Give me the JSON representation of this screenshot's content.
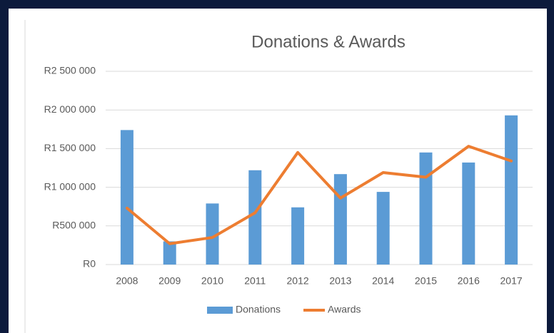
{
  "chart_data": {
    "type": "bar-line",
    "title": "Donations & Awards",
    "categories": [
      "2008",
      "2009",
      "2010",
      "2011",
      "2012",
      "2013",
      "2014",
      "2015",
      "2016",
      "2017"
    ],
    "series": [
      {
        "name": "Donations",
        "type": "bar",
        "color": "#5b9bd5",
        "values": [
          1740000,
          300000,
          790000,
          1220000,
          740000,
          1170000,
          940000,
          1450000,
          1320000,
          1930000
        ]
      },
      {
        "name": "Awards",
        "type": "line",
        "color": "#ed7d31",
        "values": [
          730000,
          270000,
          350000,
          670000,
          1450000,
          860000,
          1190000,
          1130000,
          1530000,
          1340000
        ]
      }
    ],
    "ylim": [
      0,
      2500000
    ],
    "yticks": [
      {
        "value": 0,
        "label": "R0"
      },
      {
        "value": 500000,
        "label": "R500 000"
      },
      {
        "value": 1000000,
        "label": "R1 000 000"
      },
      {
        "value": 1500000,
        "label": "R1 500 000"
      },
      {
        "value": 2000000,
        "label": "R2 000 000"
      },
      {
        "value": 2500000,
        "label": "R2 500 000"
      }
    ],
    "grid": true,
    "legend": "bottom"
  }
}
